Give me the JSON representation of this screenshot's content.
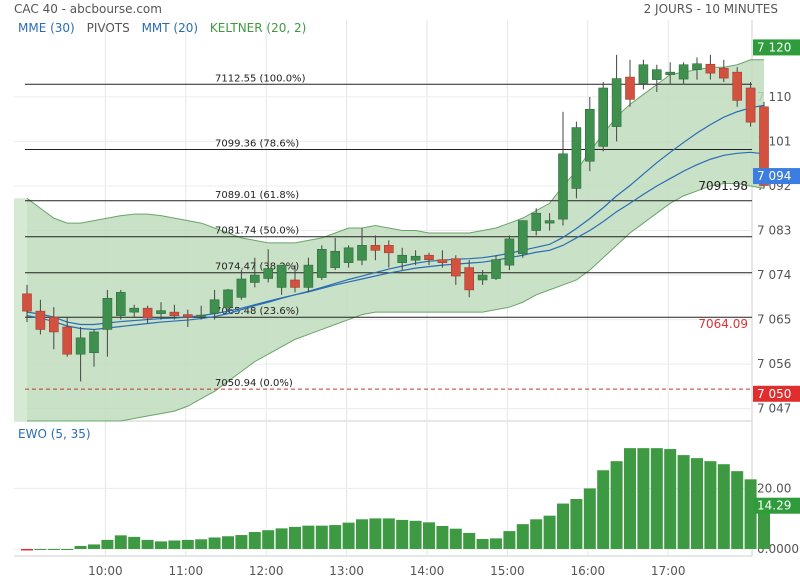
{
  "header": {
    "title": "CAC 40 - abcbourse.com",
    "period": "2 JOURS - 10 MINUTES"
  },
  "indicators": [
    {
      "label": "MME (30)",
      "color": "#2a6db5"
    },
    {
      "label": "PIVOTS",
      "color": "#555555"
    },
    {
      "label": "MMT (20)",
      "color": "#2a6db5"
    },
    {
      "label": "KELTNER (20, 2)",
      "color": "#3f9a3f"
    }
  ],
  "colors": {
    "up": "#3f8f4e",
    "down": "#d2513f",
    "band_fill": "#bfdcbc",
    "band_line": "#6aa46a",
    "ma_line": "#2a6db5",
    "ewo_bar": "#3e9a42",
    "ewo_neg": "#d8343a",
    "last_price_bg": "#3b7de0",
    "up_label_bg": "#2e9c3a",
    "down_label_bg": "#e02e2e"
  },
  "chart_data": [
    {
      "type": "candlestick",
      "title": "CAC 40",
      "y_ticks": [
        7047,
        7056,
        7065,
        7074,
        7083,
        7092,
        7101,
        7110
      ],
      "ylim": [
        7044.5,
        7121.5
      ],
      "x_ticks": [
        "10:00",
        "11:00",
        "12:00",
        "13:00",
        "14:00",
        "15:00",
        "16:00",
        "17:00"
      ],
      "x_tick_candle_index": [
        6,
        12,
        18,
        24,
        30,
        36,
        42,
        48
      ],
      "candles": [
        {
          "o": 7070.2,
          "h": 7072.0,
          "l": 7064.5,
          "c": 7066.7
        },
        {
          "o": 7066.7,
          "h": 7069.0,
          "l": 7062.0,
          "c": 7063.0
        },
        {
          "o": 7065.5,
          "h": 7067.5,
          "l": 7059.0,
          "c": 7062.5
        },
        {
          "o": 7063.5,
          "h": 7065.5,
          "l": 7057.5,
          "c": 7058.0
        },
        {
          "o": 7058.0,
          "h": 7063.5,
          "l": 7052.5,
          "c": 7061.3
        },
        {
          "o": 7058.3,
          "h": 7063.0,
          "l": 7055.5,
          "c": 7062.5
        },
        {
          "o": 7063.0,
          "h": 7071.0,
          "l": 7057.5,
          "c": 7069.3
        },
        {
          "o": 7065.8,
          "h": 7071.0,
          "l": 7065.0,
          "c": 7070.5
        },
        {
          "o": 7066.5,
          "h": 7068.0,
          "l": 7065.5,
          "c": 7067.3
        },
        {
          "o": 7067.3,
          "h": 7067.8,
          "l": 7064.3,
          "c": 7065.3
        },
        {
          "o": 7066.2,
          "h": 7068.5,
          "l": 7065.0,
          "c": 7066.8
        },
        {
          "o": 7066.5,
          "h": 7068.0,
          "l": 7065.0,
          "c": 7065.8
        },
        {
          "o": 7066.0,
          "h": 7067.0,
          "l": 7063.5,
          "c": 7065.5
        },
        {
          "o": 7065.7,
          "h": 7067.8,
          "l": 7065.0,
          "c": 7065.9
        },
        {
          "o": 7066.3,
          "h": 7071.0,
          "l": 7065.0,
          "c": 7069.0
        },
        {
          "o": 7067.5,
          "h": 7071.2,
          "l": 7066.5,
          "c": 7071.0
        },
        {
          "o": 7069.5,
          "h": 7075.0,
          "l": 7069.0,
          "c": 7073.2
        },
        {
          "o": 7072.5,
          "h": 7077.5,
          "l": 7071.5,
          "c": 7074.0
        },
        {
          "o": 7073.3,
          "h": 7079.2,
          "l": 7072.5,
          "c": 7075.3
        },
        {
          "o": 7071.5,
          "h": 7076.0,
          "l": 7070.0,
          "c": 7076.0
        },
        {
          "o": 7073.0,
          "h": 7076.0,
          "l": 7070.5,
          "c": 7071.5
        },
        {
          "o": 7071.5,
          "h": 7077.5,
          "l": 7070.5,
          "c": 7076.0
        },
        {
          "o": 7073.5,
          "h": 7080.0,
          "l": 7073.0,
          "c": 7079.2
        },
        {
          "o": 7075.5,
          "h": 7081.5,
          "l": 7075.0,
          "c": 7078.8
        },
        {
          "o": 7076.5,
          "h": 7080.0,
          "l": 7075.5,
          "c": 7079.5
        },
        {
          "o": 7077.0,
          "h": 7083.5,
          "l": 7076.0,
          "c": 7080.0
        },
        {
          "o": 7080.0,
          "h": 7082.0,
          "l": 7077.0,
          "c": 7079.0
        },
        {
          "o": 7080.0,
          "h": 7081.0,
          "l": 7075.5,
          "c": 7078.5
        },
        {
          "o": 7076.5,
          "h": 7079.5,
          "l": 7075.0,
          "c": 7078.0
        },
        {
          "o": 7077.0,
          "h": 7079.0,
          "l": 7076.0,
          "c": 7077.8
        },
        {
          "o": 7078.0,
          "h": 7078.5,
          "l": 7076.0,
          "c": 7077.1
        },
        {
          "o": 7077.1,
          "h": 7079.0,
          "l": 7075.5,
          "c": 7076.5
        },
        {
          "o": 7077.3,
          "h": 7078.0,
          "l": 7072.0,
          "c": 7073.8
        },
        {
          "o": 7075.5,
          "h": 7077.0,
          "l": 7069.5,
          "c": 7071.0
        },
        {
          "o": 7073.0,
          "h": 7075.0,
          "l": 7072.0,
          "c": 7074.0
        },
        {
          "o": 7073.3,
          "h": 7078.0,
          "l": 7073.0,
          "c": 7077.1
        },
        {
          "o": 7076.0,
          "h": 7082.0,
          "l": 7075.0,
          "c": 7081.3
        },
        {
          "o": 7078.3,
          "h": 7085.0,
          "l": 7077.5,
          "c": 7085.0
        },
        {
          "o": 7083.0,
          "h": 7087.5,
          "l": 7082.0,
          "c": 7086.5
        },
        {
          "o": 7084.5,
          "h": 7086.5,
          "l": 7083.0,
          "c": 7085.0
        },
        {
          "o": 7085.3,
          "h": 7107.0,
          "l": 7084.0,
          "c": 7098.5
        },
        {
          "o": 7091.5,
          "h": 7105.0,
          "l": 7089.5,
          "c": 7103.8
        },
        {
          "o": 7097.0,
          "h": 7110.0,
          "l": 7095.0,
          "c": 7107.5
        },
        {
          "o": 7100.0,
          "h": 7113.0,
          "l": 7099.0,
          "c": 7111.8
        },
        {
          "o": 7104.0,
          "h": 7118.5,
          "l": 7101.0,
          "c": 7113.7
        },
        {
          "o": 7114.0,
          "h": 7117.5,
          "l": 7108.0,
          "c": 7109.5
        },
        {
          "o": 7112.7,
          "h": 7117.5,
          "l": 7111.5,
          "c": 7116.5
        },
        {
          "o": 7113.5,
          "h": 7116.5,
          "l": 7111.0,
          "c": 7115.5
        },
        {
          "o": 7114.5,
          "h": 7117.0,
          "l": 7112.5,
          "c": 7115.0
        },
        {
          "o": 7113.6,
          "h": 7117.0,
          "l": 7112.5,
          "c": 7116.5
        },
        {
          "o": 7115.5,
          "h": 7118.0,
          "l": 7113.5,
          "c": 7116.7
        },
        {
          "o": 7116.6,
          "h": 7118.5,
          "l": 7113.5,
          "c": 7114.8
        },
        {
          "o": 7115.8,
          "h": 7117.5,
          "l": 7113.0,
          "c": 7113.8
        },
        {
          "o": 7115.0,
          "h": 7116.0,
          "l": 7108.0,
          "c": 7109.3
        },
        {
          "o": 7111.8,
          "h": 7113.0,
          "l": 7104.0,
          "c": 7104.9
        },
        {
          "o": 7108.0,
          "h": 7109.0,
          "l": 7091.5,
          "c": 7092.1
        }
      ],
      "series": [
        {
          "name": "MME (30)",
          "values": [
            7066.5,
            7066.1,
            7065.5,
            7064.5,
            7064.0,
            7064.0,
            7064.3,
            7064.6,
            7064.8,
            7065.0,
            7065.2,
            7065.3,
            7065.5,
            7065.8,
            7066.2,
            7066.7,
            7067.3,
            7068.0,
            7068.7,
            7069.4,
            7070.0,
            7070.6,
            7071.3,
            7072.0,
            7072.6,
            7073.2,
            7073.8,
            7074.4,
            7074.9,
            7075.4,
            7075.7,
            7076.0,
            7076.2,
            7076.4,
            7076.6,
            7077.0,
            7077.5,
            7078.0,
            7078.6,
            7079.0,
            7080.0,
            7081.5,
            7083.0,
            7084.8,
            7086.8,
            7088.5,
            7090.3,
            7092.0,
            7093.5,
            7095.0,
            7096.3,
            7097.4,
            7098.2,
            7098.6,
            7098.8,
            7098.5
          ]
        },
        {
          "name": "MMT (20)",
          "values": [
            7065.8,
            7065.3,
            7064.6,
            7063.7,
            7063.2,
            7063.0,
            7063.3,
            7063.6,
            7063.9,
            7064.2,
            7064.5,
            7064.7,
            7064.9,
            7065.2,
            7065.6,
            7066.2,
            7067.0,
            7067.8,
            7068.5,
            7069.3,
            7070.0,
            7070.7,
            7071.5,
            7072.3,
            7073.1,
            7073.8,
            7074.5,
            7075.2,
            7075.8,
            7076.4,
            7076.8,
            7077.0,
            7077.2,
            7077.3,
            7077.5,
            7077.9,
            7078.4,
            7079.0,
            7079.6,
            7080.2,
            7081.6,
            7083.4,
            7085.4,
            7087.6,
            7090.0,
            7092.1,
            7094.4,
            7096.7,
            7098.8,
            7100.8,
            7102.7,
            7104.4,
            7105.9,
            7107.0,
            7107.8,
            7108.3
          ]
        },
        {
          "name": "KELTNER (20, 2) upper",
          "values": [
            7089.5,
            7087.5,
            7085.5,
            7084.5,
            7084.5,
            7085.0,
            7085.5,
            7086.0,
            7086.3,
            7086.3,
            7086.0,
            7085.5,
            7085.0,
            7084.5,
            7083.5,
            7082.5,
            7081.5,
            7081.0,
            7080.5,
            7080.5,
            7080.5,
            7081.0,
            7081.5,
            7082.5,
            7083.5,
            7083.5,
            7084.0,
            7083.5,
            7083.0,
            7083.0,
            7082.5,
            7082.5,
            7082.5,
            7082.5,
            7083.0,
            7083.5,
            7084.5,
            7085.5,
            7087.0,
            7088.5,
            7092.0,
            7095.0,
            7099.0,
            7102.5,
            7106.0,
            7108.5,
            7110.5,
            7112.5,
            7114.5,
            7115.0,
            7115.5,
            7116.0,
            7116.0,
            7116.5,
            7117.5,
            7117.5
          ]
        },
        {
          "name": "KELTNER (20, 2) lower",
          "values": [
            7044.5,
            7044.5,
            7044.5,
            7044.5,
            7044.5,
            7044.5,
            7044.5,
            7044.5,
            7045.0,
            7045.5,
            7046.0,
            7046.5,
            7047.5,
            7049.0,
            7050.5,
            7052.5,
            7054.5,
            7056.5,
            7058.0,
            7059.5,
            7061.0,
            7062.0,
            7063.0,
            7064.0,
            7065.0,
            7066.0,
            7066.5,
            7066.5,
            7066.5,
            7066.5,
            7066.5,
            7066.5,
            7066.5,
            7066.5,
            7066.5,
            7067.0,
            7067.5,
            7068.5,
            7070.0,
            7071.0,
            7072.0,
            7073.0,
            7075.0,
            7077.5,
            7080.0,
            7082.5,
            7084.5,
            7086.5,
            7088.5,
            7090.0,
            7091.0,
            7092.0,
            7092.5,
            7092.5,
            7092.0,
            7091.5
          ]
        }
      ],
      "fibonacci": [
        {
          "label": "7112.55  (100.0%)",
          "value": 7112.55
        },
        {
          "label": "7099.36  (78.6%)",
          "value": 7099.36
        },
        {
          "label": "7089.01  (61.8%)",
          "value": 7089.01
        },
        {
          "label": "7081.74  (50.0%)",
          "value": 7081.74
        },
        {
          "label": "7074.47  (38.2%)",
          "value": 7074.47
        },
        {
          "label": "7065.48  (23.6%)",
          "value": 7065.48
        },
        {
          "label": "7050.94  (0.0%)",
          "value": 7050.94
        }
      ],
      "price_labels": [
        {
          "text": "7 120",
          "value": 7120,
          "style": "up"
        },
        {
          "text": "7 094",
          "value": 7094,
          "style": "last"
        },
        {
          "text": "7 050",
          "value": 7050,
          "style": "down"
        }
      ],
      "annotations": [
        {
          "text": "7091.98",
          "value": 7091.98,
          "color": "#222222"
        },
        {
          "text": "7064.09",
          "value": 7064.09,
          "color": "#d8343a"
        }
      ]
    },
    {
      "type": "bar",
      "title": "EWO (5, 35)",
      "y_ticks": [
        {
          "label": "20.00",
          "value": 20
        },
        {
          "label": "0.0000",
          "value": 0
        }
      ],
      "ylim": [
        -1,
        35
      ],
      "last_value_label": "14.29",
      "last_value": 14.29,
      "values": [
        -0.5,
        0,
        0,
        0,
        1,
        1.5,
        3,
        4.5,
        4,
        3,
        2.5,
        2.8,
        3,
        3.2,
        3.8,
        4.2,
        4.6,
        5.6,
        6.2,
        6.8,
        7.3,
        7.7,
        7.7,
        7.9,
        8.7,
        9.8,
        10.1,
        10.1,
        9.6,
        9.3,
        8.8,
        7.6,
        6.7,
        5.3,
        3.3,
        3.5,
        5.9,
        8.2,
        9.8,
        11.0,
        15.0,
        16.5,
        20.0,
        26.0,
        29.0,
        33.3,
        33.3,
        33.3,
        33.0,
        31.0,
        30.0,
        29.0,
        28.0,
        25.7,
        23.0,
        14.29
      ]
    }
  ]
}
